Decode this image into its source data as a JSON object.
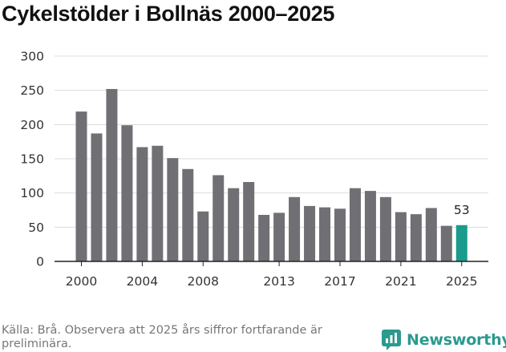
{
  "title": "Cykelstölder i Bollnäs 2000–2025",
  "source": "Källa: Brå. Observera att 2025 års siffror fortfarande är preliminära.",
  "brand": "Newsworthy",
  "colors": {
    "bar": "#707074",
    "highlight": "#1a9b8c",
    "grid": "#dcdcdc",
    "axis": "#222222"
  },
  "chart_data": {
    "type": "bar",
    "title": "Cykelstölder i Bollnäs 2000–2025",
    "xlabel": "",
    "ylabel": "",
    "ylim": [
      0,
      300
    ],
    "yticks": [
      0,
      50,
      100,
      150,
      200,
      250,
      300
    ],
    "xticks": [
      2000,
      2004,
      2008,
      2013,
      2017,
      2021,
      2025
    ],
    "grid": true,
    "categories": [
      2000,
      2001,
      2002,
      2003,
      2004,
      2005,
      2006,
      2007,
      2008,
      2009,
      2010,
      2011,
      2012,
      2013,
      2014,
      2015,
      2016,
      2017,
      2018,
      2019,
      2020,
      2021,
      2022,
      2023,
      2024,
      2025
    ],
    "values": [
      219,
      187,
      252,
      199,
      167,
      169,
      151,
      135,
      73,
      126,
      107,
      116,
      68,
      71,
      94,
      81,
      79,
      77,
      107,
      103,
      94,
      72,
      69,
      78,
      52,
      53
    ],
    "highlight": {
      "category": 2025,
      "label": "53"
    }
  }
}
